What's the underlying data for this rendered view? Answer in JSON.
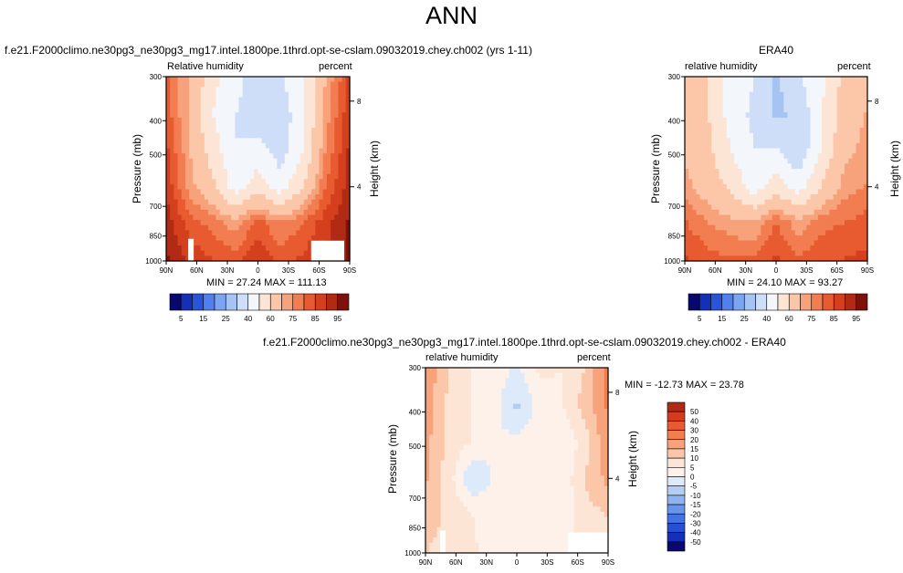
{
  "page_title": "ANN",
  "panels": [
    {
      "title": "f.e21.F2000climo.ne30pg3_ne30pg3_mg17.intel.1800pe.1thrd.opt-se-cslam.09032019.chey.ch002 (yrs 1-11)",
      "left_label": "Relative humidity",
      "right_label": "percent",
      "stats": "MIN =  27.24   MAX = 111.13"
    },
    {
      "title": "ERA40",
      "left_label": "relative humidity",
      "right_label": "percent",
      "stats": "MIN =  24.10   MAX =  93.27"
    },
    {
      "title": "f.e21.F2000climo.ne30pg3_ne30pg3_mg17.intel.1800pe.1thrd.opt-se-cslam.09032019.chey.ch002 - ERA40",
      "left_label": "relative humidity",
      "right_label": "percent",
      "stats": "MIN = -12.73   MAX =  23.78"
    }
  ],
  "axes": {
    "ylabel": "Pressure (mb)",
    "y2label": "Height (km)",
    "yticks": [
      "300",
      "400",
      "500",
      "700",
      "850",
      "1000"
    ],
    "xticks": [
      "90N",
      "60N",
      "30N",
      "0",
      "30S",
      "60S",
      "90S"
    ],
    "y2ticks": [
      "8",
      "4"
    ]
  },
  "colorbar_abs": {
    "labels": [
      "5",
      "15",
      "25",
      "40",
      "60",
      "75",
      "85",
      "95"
    ],
    "colors": [
      "#08086e",
      "#1530b8",
      "#2a55d8",
      "#4f80ee",
      "#7ba5f0",
      "#a6c4f3",
      "#cfdef8",
      "#f3f6fb",
      "#fde5d6",
      "#fbc7a8",
      "#f7a27b",
      "#f17d51",
      "#e85a30",
      "#d4401e",
      "#b02a14",
      "#7e120a"
    ]
  },
  "colorbar_diff": {
    "labels": [
      "50",
      "40",
      "30",
      "20",
      "15",
      "10",
      "5",
      "0",
      "-5",
      "-10",
      "-15",
      "-20",
      "-30",
      "-40",
      "-50"
    ],
    "colors": [
      "#b02a14",
      "#d43a1c",
      "#e85a30",
      "#f17d51",
      "#f7a27b",
      "#fbc7a8",
      "#fde5d6",
      "#fdf1ea",
      "#ddeafa",
      "#b4cdf5",
      "#8fb2f0",
      "#6a93ea",
      "#4273e4",
      "#2550d6",
      "#1530b8",
      "#08086e"
    ]
  },
  "chart_data": [
    {
      "type": "heatmap",
      "title": "f.e21.F2000climo.ne30pg3_ne30pg3_mg17.intel.1800pe.1thrd.opt-se-cslam.09032019.chey.ch002 (yrs 1-11)",
      "xlabel": "",
      "ylabel": "Pressure (mb)",
      "y2label": "Height (km)",
      "x": [
        "90N",
        "60N",
        "30N",
        "0",
        "30S",
        "60S",
        "90S"
      ],
      "y": [
        300,
        400,
        500,
        700,
        850,
        1000
      ],
      "min": 27.24,
      "max": 111.13,
      "values": [
        [
          80,
          70,
          52,
          45,
          30,
          38,
          50,
          70,
          85
        ],
        [
          82,
          68,
          50,
          40,
          32,
          33,
          48,
          72,
          88
        ],
        [
          85,
          70,
          55,
          40,
          45,
          35,
          50,
          75,
          90
        ],
        [
          88,
          72,
          62,
          45,
          55,
          45,
          60,
          80,
          92
        ],
        [
          92,
          82,
          78,
          72,
          82,
          75,
          80,
          88,
          95
        ],
        [
          95,
          88,
          85,
          82,
          90,
          82,
          86,
          90,
          96
        ]
      ]
    },
    {
      "type": "heatmap",
      "title": "ERA40",
      "xlabel": "",
      "ylabel": "Pressure (mb)",
      "y2label": "Height (km)",
      "x": [
        "90N",
        "60N",
        "30N",
        "0",
        "30S",
        "60S",
        "90S"
      ],
      "y": [
        300,
        400,
        500,
        700,
        850,
        1000
      ],
      "min": 24.1,
      "max": 93.27,
      "values": [
        [
          62,
          60,
          45,
          40,
          28,
          38,
          48,
          62,
          68
        ],
        [
          65,
          60,
          45,
          38,
          28,
          32,
          48,
          65,
          70
        ],
        [
          68,
          62,
          50,
          40,
          42,
          32,
          50,
          68,
          72
        ],
        [
          72,
          65,
          58,
          45,
          55,
          45,
          60,
          72,
          75
        ],
        [
          80,
          75,
          72,
          70,
          80,
          72,
          78,
          80,
          82
        ],
        [
          85,
          82,
          80,
          80,
          86,
          80,
          84,
          85,
          86
        ]
      ]
    },
    {
      "type": "heatmap",
      "title": "f.e21.F2000climo.ne30pg3_ne30pg3_mg17.intel.1800pe.1thrd.opt-se-cslam.09032019.chey.ch002 - ERA40",
      "xlabel": "",
      "ylabel": "Pressure (mb)",
      "y2label": "Height (km)",
      "x": [
        "90N",
        "60N",
        "30N",
        "0",
        "30S",
        "60S",
        "90S"
      ],
      "y": [
        300,
        400,
        500,
        700,
        850,
        1000
      ],
      "min": -12.73,
      "max": 23.78,
      "values": [
        [
          18,
          10,
          5,
          4,
          -2,
          6,
          5,
          10,
          22
        ],
        [
          18,
          8,
          5,
          2,
          -6,
          2,
          4,
          12,
          20
        ],
        [
          16,
          8,
          5,
          0,
          2,
          3,
          0,
          7,
          18
        ],
        [
          15,
          7,
          -5,
          1,
          2,
          1,
          1,
          10,
          16
        ],
        [
          12,
          9,
          5,
          2,
          3,
          3,
          1,
          8,
          10
        ],
        [
          10,
          8,
          6,
          2,
          4,
          2,
          3,
          6,
          8
        ]
      ]
    }
  ]
}
